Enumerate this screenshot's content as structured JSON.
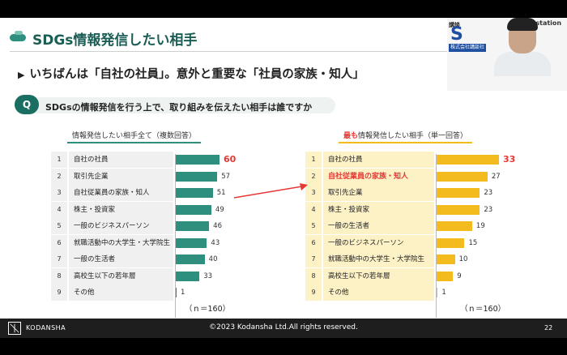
{
  "slide": {
    "title": "SDGs情報発信したい相手",
    "headline": "いちばんは「自社の社員」。意外と重要な「社員の家族・知人」",
    "headline_icon": "triangle-right-icon",
    "question_badge": "Q",
    "question": "SDGsの情報発信を行う上で、取り組みを伝えたい相手は誰ですか"
  },
  "pip": {
    "logo": "C-station",
    "label": "講談",
    "letter": "S",
    "nameplate": "株式会社講談社"
  },
  "left_chart": {
    "title": "情報発信したい相手全て（複数回答）",
    "n_label": "（ｎ＝160）",
    "rows": [
      {
        "rank": "1",
        "label": "自社の社員",
        "value": 60,
        "value_text": "60",
        "highlight": true
      },
      {
        "rank": "2",
        "label": "取引先企業",
        "value": 57,
        "value_text": "57",
        "highlight": false
      },
      {
        "rank": "3",
        "label": "自社従業員の家族・知人",
        "value": 51,
        "value_text": "51",
        "highlight": false
      },
      {
        "rank": "4",
        "label": "株主・投資家",
        "value": 49,
        "value_text": "49",
        "highlight": false
      },
      {
        "rank": "5",
        "label": "一般のビジネスパーソン",
        "value": 46,
        "value_text": "46",
        "highlight": false
      },
      {
        "rank": "6",
        "label": "就職活動中の大学生・大学院生",
        "value": 43,
        "value_text": "43",
        "highlight": false
      },
      {
        "rank": "7",
        "label": "一般の生活者",
        "value": 40,
        "value_text": "40",
        "highlight": false
      },
      {
        "rank": "8",
        "label": "高校生以下の若年層",
        "value": 33,
        "value_text": "33",
        "highlight": false
      },
      {
        "rank": "9",
        "label": "その他",
        "value": 1,
        "value_text": "1",
        "highlight": false
      }
    ]
  },
  "right_chart": {
    "title_emphasis": "最も",
    "title_rest": "情報発信したい相手（単一回答）",
    "n_label": "（ｎ＝160）",
    "rows": [
      {
        "rank": "1",
        "label": "自社の社員",
        "value": 33,
        "value_text": "33",
        "highlight_value": true,
        "highlight_label": false
      },
      {
        "rank": "2",
        "label": "自社従業員の家族・知人",
        "value": 27,
        "value_text": "27",
        "highlight_value": false,
        "highlight_label": true
      },
      {
        "rank": "3",
        "label": "取引先企業",
        "value": 23,
        "value_text": "23",
        "highlight_value": false,
        "highlight_label": false
      },
      {
        "rank": "4",
        "label": "株主・投資家",
        "value": 23,
        "value_text": "23",
        "highlight_value": false,
        "highlight_label": false
      },
      {
        "rank": "5",
        "label": "一般の生活者",
        "value": 19,
        "value_text": "19",
        "highlight_value": false,
        "highlight_label": false
      },
      {
        "rank": "6",
        "label": "一般のビジネスパーソン",
        "value": 15,
        "value_text": "15",
        "highlight_value": false,
        "highlight_label": false
      },
      {
        "rank": "7",
        "label": "就職活動中の大学生・大学院生",
        "value": 10,
        "value_text": "10",
        "highlight_value": false,
        "highlight_label": false
      },
      {
        "rank": "8",
        "label": "高校生以下の若年層",
        "value": 9,
        "value_text": "9",
        "highlight_value": false,
        "highlight_label": false
      },
      {
        "rank": "9",
        "label": "その他",
        "value": 1,
        "value_text": "1",
        "highlight_value": false,
        "highlight_label": false
      }
    ]
  },
  "footer": {
    "brand": "KODANSHA",
    "copyright": "©2023 Kodansha Ltd.All rights reserved.",
    "page": "22"
  },
  "colors": {
    "teal": "#2f8f7f",
    "yellow": "#f4bb1f",
    "highlight_red": "#e53935"
  }
}
